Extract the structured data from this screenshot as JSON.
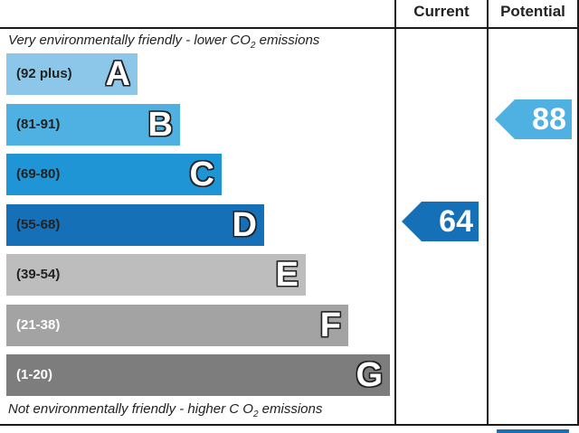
{
  "header": {
    "current_label": "Current",
    "potential_label": "Potential"
  },
  "captions": {
    "top_prefix": "Very environmentally friendly - lower C",
    "top_mid": "O",
    "top_sub": "2",
    "top_suffix": " emissions",
    "bottom_prefix": "Not environmentally friendly - higher C O",
    "bottom_sub": "2",
    "bottom_suffix": " emissions"
  },
  "chart_data": {
    "type": "bar",
    "bands": [
      {
        "letter": "A",
        "range": "(92 plus)",
        "color": "#8cc7ea",
        "text_color": "#222222"
      },
      {
        "letter": "B",
        "range": "(81-91)",
        "color": "#4fb0e2",
        "text_color": "#222222"
      },
      {
        "letter": "C",
        "range": "(69-80)",
        "color": "#1f95d6",
        "text_color": "#222222"
      },
      {
        "letter": "D",
        "range": "(55-68)",
        "color": "#1670b8",
        "text_color": "#222222"
      },
      {
        "letter": "E",
        "range": "(39-54)",
        "color": "#bdbdbd",
        "text_color": "#222222"
      },
      {
        "letter": "F",
        "range": "(21-38)",
        "color": "#a3a3a3",
        "text_color": "#ffffff"
      },
      {
        "letter": "G",
        "range": "(1-20)",
        "color": "#7d7d7d",
        "text_color": "#ffffff"
      }
    ],
    "current": {
      "value": "64",
      "band": "D",
      "color": "#1670b8"
    },
    "potential": {
      "value": "88",
      "band": "B",
      "color": "#4fb0e2"
    }
  }
}
